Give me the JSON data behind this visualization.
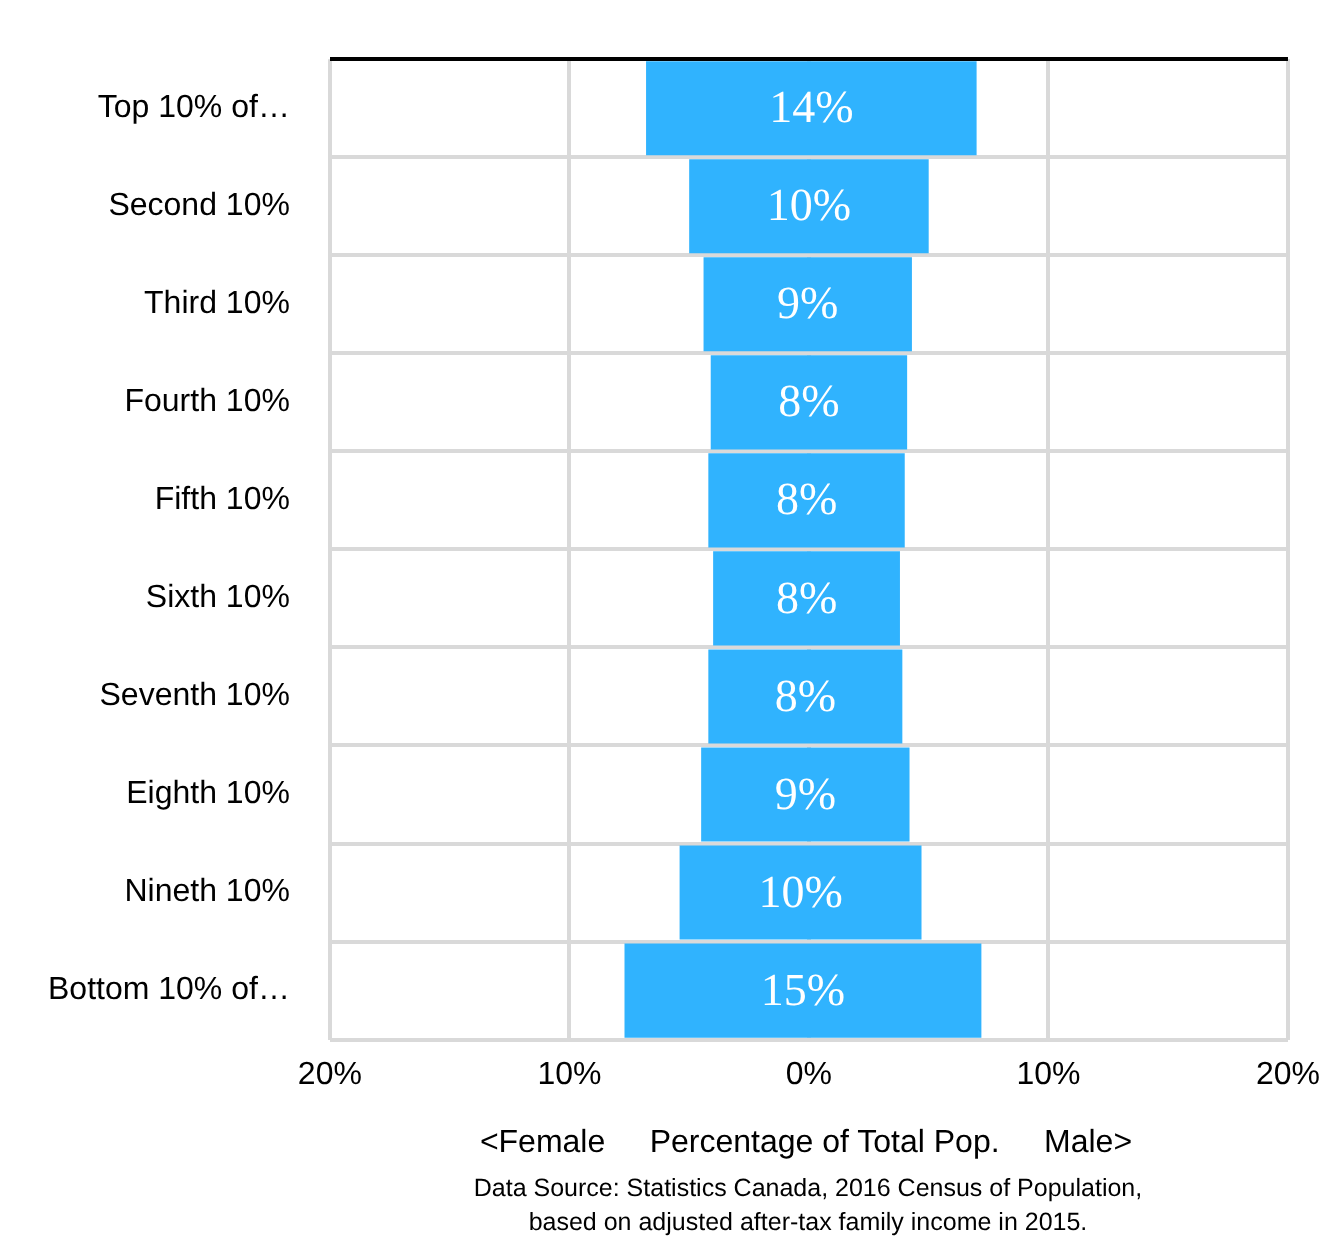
{
  "chart_data": {
    "type": "bar",
    "orientation": "horizontal",
    "categories": [
      "Top 10% of…",
      "Second 10%",
      "Third 10%",
      "Fourth 10%",
      "Fifth 10%",
      "Sixth 10%",
      "Seventh 10%",
      "Eighth 10%",
      "Nineth 10%",
      "Bottom 10% of…"
    ],
    "base": [
      -6.8,
      -5.0,
      -4.4,
      -4.1,
      -4.2,
      -4.0,
      -4.2,
      -4.5,
      -5.4,
      -7.7
    ],
    "values": [
      13.8,
      10.0,
      8.7,
      8.2,
      8.2,
      7.8,
      8.1,
      8.7,
      10.1,
      14.9
    ],
    "value_labels": [
      "14%",
      "10%",
      "9%",
      "8%",
      "8%",
      "8%",
      "8%",
      "9%",
      "10%",
      "15%"
    ],
    "color": "#30b3fe",
    "xlim": [
      -20,
      20
    ],
    "xticks": [
      {
        "value": -20,
        "label": "20%"
      },
      {
        "value": -10,
        "label": "10%"
      },
      {
        "value": 0,
        "label": "0%"
      },
      {
        "value": 10,
        "label": "10%"
      },
      {
        "value": 20,
        "label": "20%"
      }
    ],
    "xlabel": "<Female     Percentage of Total Pop.     Male>",
    "annotations": [
      "Data Source: Statistics Canada, 2016 Census of Population, based on adjusted after-tax family income in 2015."
    ],
    "grid": true,
    "legend": false
  }
}
